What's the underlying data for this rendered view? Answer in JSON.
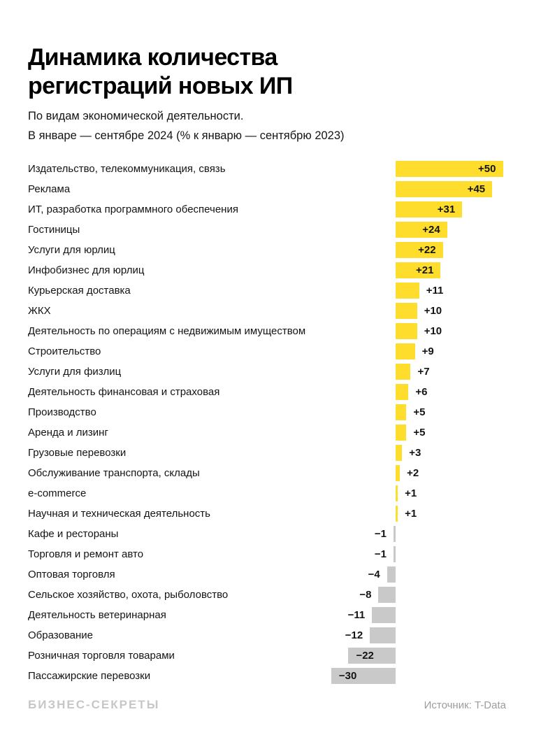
{
  "header": {
    "title_line1": "Динамика количества",
    "title_line2": "регистраций новых ИП",
    "subtitle_line1": "По видам экономической деятельности.",
    "subtitle_line2": "В январе — сентябре 2024 (% к январю — сентябрю 2023)"
  },
  "footer": {
    "brand": "БИЗНЕС-СЕКРЕТЫ",
    "source": "Источник: T-Data"
  },
  "colors": {
    "positive_bar": "#FFDD2D",
    "negative_bar": "#C9C9C9",
    "text": "#141414",
    "footer_brand": "#C7C7C7",
    "footer_source": "#9C9C9C"
  },
  "chart_data": {
    "type": "bar",
    "orientation": "horizontal",
    "title": "Динамика количества регистраций новых ИП",
    "subtitle": "По видам экономической деятельности. В январе — сентябре 2024 (% к январю — сентябрю 2023)",
    "unit": "% год к году",
    "xlim": [
      -30,
      50
    ],
    "grid": false,
    "legend": false,
    "categories": [
      "Издательство, телекоммуникация, связь",
      "Реклама",
      "ИТ, разработка программного обеспечения",
      "Гостиницы",
      "Услуги для юрлиц",
      "Инфобизнес для юрлиц",
      "Курьерская доставка",
      "ЖКХ",
      "Деятельность по операциям с недвижимым имуществом",
      "Строительство",
      "Услуги для физлиц",
      "Деятельность финансовая и страховая",
      "Производство",
      "Аренда и лизинг",
      "Грузовые перевозки",
      "Обслуживание транспорта, склады",
      "e-commerce",
      "Научная и техническая деятельность",
      "Кафе и рестораны",
      "Торговля и ремонт авто",
      "Оптовая торговля",
      "Сельское хозяйство, охота, рыболовство",
      "Деятельность ветеринарная",
      "Образование",
      "Розничная торговля товарами",
      "Пассажирские перевозки"
    ],
    "values": [
      50,
      45,
      31,
      24,
      22,
      21,
      11,
      10,
      10,
      9,
      7,
      6,
      5,
      5,
      3,
      2,
      1,
      1,
      -1,
      -1,
      -4,
      -8,
      -11,
      -12,
      -22,
      -30
    ],
    "value_labels": [
      "+50",
      "+45",
      "+31",
      "+24",
      "+22",
      "+21",
      "+11",
      "+10",
      "+10",
      "+9",
      "+7",
      "+6",
      "+5",
      "+5",
      "+3",
      "+2",
      "+1",
      "+1",
      "−1",
      "−1",
      "−4",
      "−8",
      "−11",
      "−12",
      "−22",
      "−30"
    ]
  }
}
